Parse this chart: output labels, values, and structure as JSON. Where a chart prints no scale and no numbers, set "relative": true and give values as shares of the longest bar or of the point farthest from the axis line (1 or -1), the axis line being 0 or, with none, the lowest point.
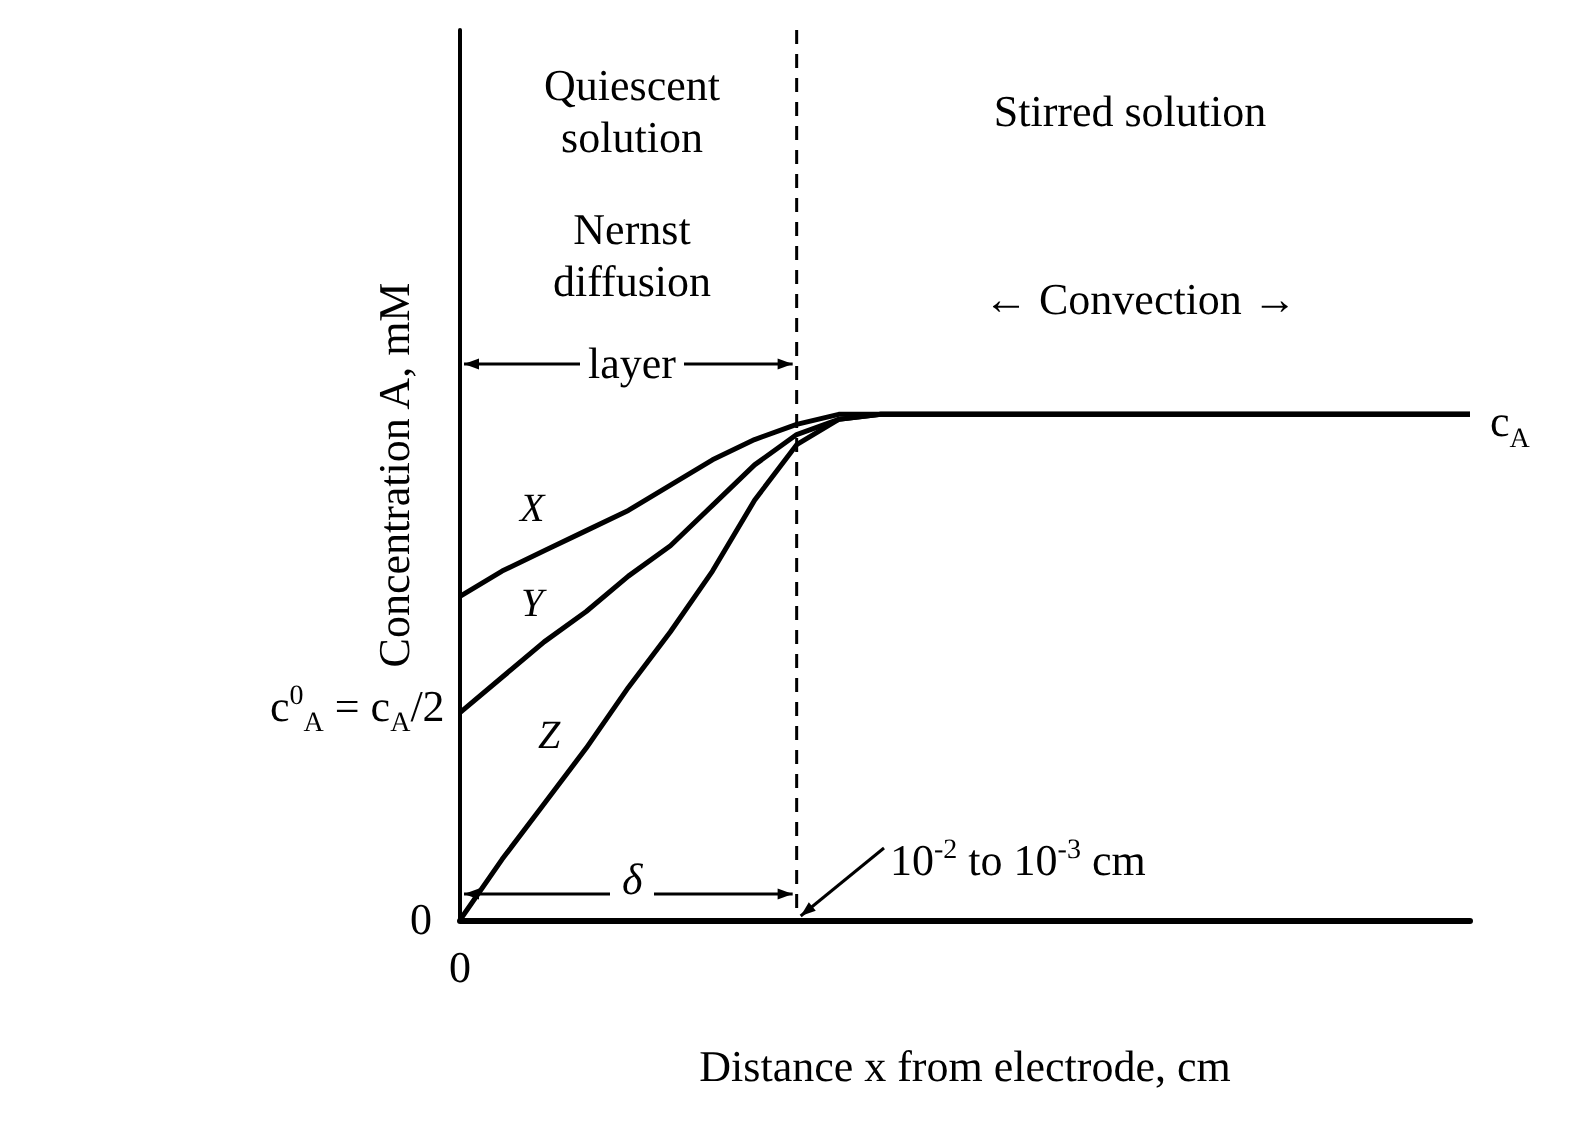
{
  "chart_data": {
    "type": "line",
    "relative": true,
    "xlabel": "Distance x from electrode, cm",
    "ylabel": "Concentration A, mM",
    "categories": [
      null,
      null,
      null,
      null,
      null,
      null,
      null,
      null,
      null,
      null,
      null,
      null,
      null,
      null,
      null,
      null,
      null,
      null,
      null,
      null,
      null,
      null,
      null,
      null,
      null
    ],
    "series": [
      {
        "name": "X",
        "color": "#000000",
        "values": [
          0.64,
          0.69,
          0.73,
          0.77,
          0.81,
          0.86,
          0.91,
          0.95,
          0.98,
          1,
          1,
          1,
          1,
          1,
          1,
          1,
          1,
          1,
          1,
          1,
          1,
          1,
          1,
          1,
          1
        ]
      },
      {
        "name": "Y",
        "color": "#000000",
        "values": [
          0.41,
          0.48,
          0.55,
          0.61,
          0.68,
          0.74,
          0.82,
          0.9,
          0.96,
          0.99,
          1,
          1,
          1,
          1,
          1,
          1,
          1,
          1,
          1,
          1,
          1,
          1,
          1,
          1,
          1
        ]
      },
      {
        "name": "Z",
        "color": "#000000",
        "values": [
          0,
          0.12,
          0.23,
          0.34,
          0.46,
          0.57,
          0.69,
          0.83,
          0.94,
          0.99,
          1,
          1,
          1,
          1,
          1,
          1,
          1,
          1,
          1,
          1,
          1,
          1,
          1,
          1,
          1
        ]
      }
    ],
    "annotations": [
      "Quiescent solution",
      "Stirred solution",
      "Nernst diffusion",
      "layer",
      "← Convection →",
      "δ",
      "10$^{-2}$ to 10$^{-3}$ cm",
      "0",
      "c$^{0}$$_{A}$ = c$_{A}$/2",
      "c$_{A}$",
      "0"
    ],
    "grid": false,
    "legend": false,
    "line_style": "solid"
  }
}
